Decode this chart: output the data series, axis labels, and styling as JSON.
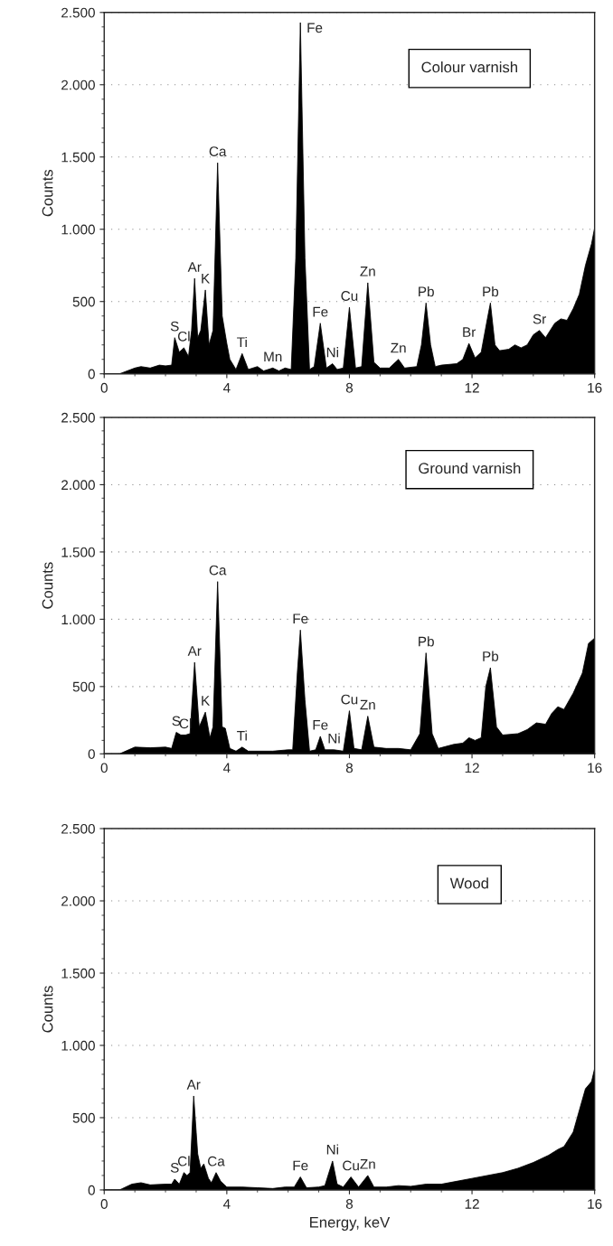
{
  "chart_data": [
    {
      "type": "area",
      "title": "Colour varnish",
      "ylabel": "Counts",
      "grid": "y",
      "xlim": [
        0,
        16
      ],
      "xticks": [
        0,
        4,
        8,
        12,
        16
      ],
      "ylim": [
        0,
        2500
      ],
      "yticks": [
        {
          "value": 0,
          "label": "0"
        },
        {
          "value": 500,
          "label": "500"
        },
        {
          "value": 1000,
          "label": "1.000"
        },
        {
          "value": 1500,
          "label": "1.500"
        },
        {
          "value": 2000,
          "label": "2.000"
        },
        {
          "value": 2500,
          "label": "2.500"
        }
      ],
      "x": [
        0,
        0.5,
        1.0,
        1.2,
        1.5,
        1.8,
        2.0,
        2.2,
        2.3,
        2.45,
        2.6,
        2.75,
        2.85,
        2.95,
        3.05,
        3.15,
        3.3,
        3.42,
        3.55,
        3.7,
        3.85,
        4.0,
        4.1,
        4.3,
        4.5,
        4.7,
        5.0,
        5.2,
        5.5,
        5.7,
        5.9,
        6.1,
        6.25,
        6.4,
        6.55,
        6.7,
        6.85,
        7.05,
        7.25,
        7.45,
        7.6,
        7.8,
        8.0,
        8.2,
        8.4,
        8.6,
        8.8,
        9.0,
        9.3,
        9.6,
        9.8,
        10.2,
        10.35,
        10.5,
        10.65,
        10.8,
        11.0,
        11.5,
        11.7,
        11.9,
        12.1,
        12.3,
        12.5,
        12.6,
        12.75,
        12.9,
        13.2,
        13.4,
        13.6,
        13.8,
        14.0,
        14.2,
        14.4,
        14.7,
        14.9,
        15.1,
        15.3,
        15.5,
        15.7,
        15.9,
        16.0
      ],
      "series": [
        {
          "color": "#000000",
          "values": [
            0,
            0,
            40,
            50,
            40,
            60,
            55,
            60,
            250,
            150,
            180,
            120,
            300,
            660,
            250,
            300,
            580,
            200,
            300,
            1460,
            400,
            210,
            100,
            30,
            140,
            30,
            50,
            20,
            40,
            20,
            40,
            30,
            800,
            2430,
            800,
            30,
            50,
            350,
            40,
            70,
            30,
            40,
            460,
            40,
            50,
            630,
            80,
            40,
            40,
            100,
            40,
            50,
            200,
            490,
            200,
            50,
            60,
            70,
            100,
            210,
            110,
            150,
            380,
            490,
            200,
            160,
            170,
            200,
            180,
            200,
            270,
            300,
            250,
            350,
            380,
            370,
            450,
            550,
            750,
            900,
            1010
          ]
        }
      ],
      "annotations": [
        {
          "text": "S",
          "x": 2.3,
          "y": 250
        },
        {
          "text": "Cl",
          "x": 2.6,
          "y": 180
        },
        {
          "text": "Ar",
          "x": 2.95,
          "y": 660
        },
        {
          "text": "K",
          "x": 3.3,
          "y": 580
        },
        {
          "text": "Ca",
          "x": 3.7,
          "y": 1460
        },
        {
          "text": "Fe",
          "x": 6.4,
          "y": 2430
        },
        {
          "text": "Ti",
          "x": 4.5,
          "y": 140
        },
        {
          "text": "Mn",
          "x": 5.5,
          "y": 40
        },
        {
          "text": "Fe",
          "x": 7.05,
          "y": 350
        },
        {
          "text": "Ni",
          "x": 7.45,
          "y": 70
        },
        {
          "text": "Cu",
          "x": 8.0,
          "y": 460
        },
        {
          "text": "Zn",
          "x": 8.6,
          "y": 630
        },
        {
          "text": "Zn",
          "x": 9.6,
          "y": 100
        },
        {
          "text": "Pb",
          "x": 10.5,
          "y": 490
        },
        {
          "text": "Br",
          "x": 11.9,
          "y": 210
        },
        {
          "text": "Pb",
          "x": 12.6,
          "y": 490
        },
        {
          "text": "Sr",
          "x": 14.2,
          "y": 300
        }
      ]
    },
    {
      "type": "area",
      "title": "Ground varnish",
      "ylabel": "Counts",
      "grid": "y",
      "xlim": [
        0,
        16
      ],
      "xticks": [
        0,
        4,
        8,
        12,
        16
      ],
      "ylim": [
        0,
        2500
      ],
      "yticks": [
        {
          "value": 0,
          "label": "0"
        },
        {
          "value": 500,
          "label": "500"
        },
        {
          "value": 1000,
          "label": "1.000"
        },
        {
          "value": 1500,
          "label": "1.500"
        },
        {
          "value": 2000,
          "label": "2.000"
        },
        {
          "value": 2500,
          "label": "2.500"
        }
      ],
      "x": [
        0,
        0.5,
        1.0,
        1.5,
        2.0,
        2.2,
        2.35,
        2.5,
        2.65,
        2.8,
        2.95,
        3.1,
        3.3,
        3.45,
        3.55,
        3.7,
        3.85,
        3.95,
        4.1,
        4.3,
        4.5,
        4.7,
        5.5,
        6.0,
        6.15,
        6.3,
        6.4,
        6.55,
        6.7,
        6.9,
        7.05,
        7.2,
        7.5,
        7.8,
        8.0,
        8.15,
        8.4,
        8.6,
        8.8,
        9.2,
        9.6,
        10.0,
        10.3,
        10.5,
        10.7,
        10.9,
        11.4,
        11.7,
        11.9,
        12.1,
        12.3,
        12.45,
        12.6,
        12.8,
        13.0,
        13.5,
        13.8,
        14.1,
        14.4,
        14.6,
        14.8,
        15.0,
        15.3,
        15.6,
        15.8,
        16.0
      ],
      "series": [
        {
          "color": "#000000",
          "values": [
            0,
            0,
            50,
            45,
            50,
            40,
            160,
            140,
            140,
            150,
            680,
            200,
            310,
            120,
            200,
            1280,
            200,
            190,
            40,
            20,
            50,
            20,
            20,
            30,
            30,
            600,
            920,
            400,
            20,
            30,
            130,
            30,
            30,
            20,
            320,
            40,
            30,
            280,
            50,
            40,
            40,
            30,
            150,
            750,
            150,
            40,
            70,
            80,
            120,
            100,
            120,
            500,
            640,
            200,
            140,
            150,
            180,
            230,
            220,
            300,
            350,
            330,
            450,
            600,
            820,
            860
          ]
        }
      ],
      "annotations": [
        {
          "text": "S",
          "x": 2.35,
          "y": 160
        },
        {
          "text": "Cl",
          "x": 2.65,
          "y": 140
        },
        {
          "text": "Ar",
          "x": 2.95,
          "y": 680
        },
        {
          "text": "K",
          "x": 3.3,
          "y": 310
        },
        {
          "text": "Ca",
          "x": 3.7,
          "y": 1280
        },
        {
          "text": "Ti",
          "x": 4.5,
          "y": 50
        },
        {
          "text": "Fe",
          "x": 6.4,
          "y": 920
        },
        {
          "text": "Fe",
          "x": 7.05,
          "y": 130
        },
        {
          "text": "Ni",
          "x": 7.5,
          "y": 30
        },
        {
          "text": "Cu",
          "x": 8.0,
          "y": 320
        },
        {
          "text": "Zn",
          "x": 8.6,
          "y": 280
        },
        {
          "text": "Pb",
          "x": 10.5,
          "y": 750
        },
        {
          "text": "Pb",
          "x": 12.6,
          "y": 640
        }
      ]
    },
    {
      "type": "area",
      "title": "Wood",
      "ylabel": "Counts",
      "xlabel": "Energy, keV",
      "grid": "y",
      "xlim": [
        0,
        16
      ],
      "xticks": [
        0,
        4,
        8,
        12,
        16
      ],
      "ylim": [
        0,
        2500
      ],
      "yticks": [
        {
          "value": 0,
          "label": "0"
        },
        {
          "value": 500,
          "label": "500"
        },
        {
          "value": 1000,
          "label": "1.000"
        },
        {
          "value": 1500,
          "label": "1.500"
        },
        {
          "value": 2000,
          "label": "2.000"
        },
        {
          "value": 2500,
          "label": "2.500"
        }
      ],
      "x": [
        0,
        0.5,
        0.9,
        1.2,
        1.5,
        2.0,
        2.2,
        2.3,
        2.45,
        2.6,
        2.7,
        2.8,
        2.92,
        3.05,
        3.15,
        3.25,
        3.4,
        3.5,
        3.65,
        3.8,
        4.0,
        4.5,
        5.0,
        5.5,
        5.9,
        6.2,
        6.4,
        6.6,
        7.0,
        7.2,
        7.45,
        7.6,
        7.8,
        8.05,
        8.3,
        8.6,
        8.8,
        9.2,
        9.6,
        10.0,
        10.5,
        11.0,
        11.5,
        12.0,
        12.5,
        13.0,
        13.5,
        14.0,
        14.5,
        14.8,
        15.0,
        15.3,
        15.5,
        15.7,
        15.9,
        16.0
      ],
      "series": [
        {
          "color": "#000000",
          "values": [
            0,
            0,
            40,
            50,
            35,
            40,
            40,
            75,
            40,
            120,
            100,
            120,
            650,
            250,
            150,
            180,
            80,
            50,
            120,
            60,
            20,
            20,
            15,
            10,
            20,
            20,
            90,
            15,
            20,
            30,
            200,
            40,
            20,
            90,
            20,
            100,
            20,
            20,
            30,
            25,
            40,
            40,
            60,
            80,
            100,
            120,
            150,
            190,
            240,
            280,
            300,
            400,
            550,
            700,
            750,
            840
          ]
        }
      ],
      "annotations": [
        {
          "text": "S",
          "x": 2.3,
          "y": 75
        },
        {
          "text": "Cl",
          "x": 2.6,
          "y": 120
        },
        {
          "text": "Ar",
          "x": 2.92,
          "y": 650
        },
        {
          "text": "Ca",
          "x": 3.65,
          "y": 120
        },
        {
          "text": "Fe",
          "x": 6.4,
          "y": 90
        },
        {
          "text": "Ni",
          "x": 7.45,
          "y": 200
        },
        {
          "text": "Cu",
          "x": 8.05,
          "y": 90
        },
        {
          "text": "Zn",
          "x": 8.6,
          "y": 100
        }
      ]
    }
  ]
}
